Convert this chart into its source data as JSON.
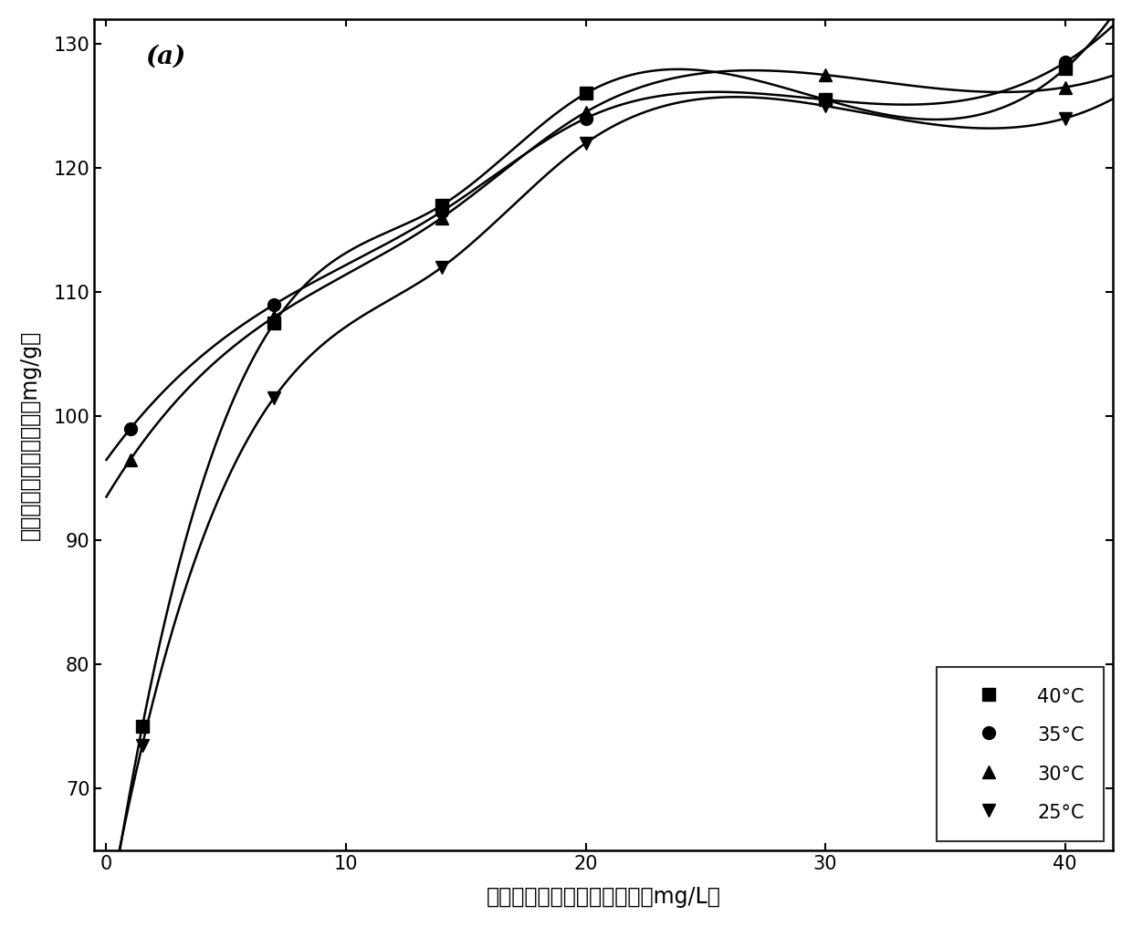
{
  "title": "(a)",
  "xlabel": "吸附饱和后剩余磷酸盐浓度（mg/L）",
  "ylabel": "吸附饱和时磷吸附容量（mg/g）",
  "xlim": [
    -0.5,
    42
  ],
  "ylim": [
    65,
    132
  ],
  "xticks": [
    0,
    10,
    20,
    30,
    40
  ],
  "yticks": [
    70,
    80,
    90,
    100,
    110,
    120,
    130
  ],
  "series": [
    {
      "label": "40°C",
      "marker": "s",
      "x": [
        1.5,
        7,
        14,
        20,
        30,
        40
      ],
      "y": [
        75.0,
        107.5,
        117.0,
        126.0,
        125.5,
        128.0
      ]
    },
    {
      "label": "35°C",
      "marker": "o",
      "x": [
        1.0,
        7,
        14,
        20,
        30,
        40
      ],
      "y": [
        99.0,
        109.0,
        116.5,
        124.0,
        125.5,
        128.5
      ]
    },
    {
      "label": "30°C",
      "marker": "^",
      "x": [
        1.0,
        7,
        14,
        20,
        30,
        40
      ],
      "y": [
        96.5,
        108.0,
        116.0,
        124.5,
        127.5,
        126.5
      ]
    },
    {
      "label": "25°C",
      "marker": "v",
      "x": [
        1.5,
        7,
        14,
        20,
        30,
        40
      ],
      "y": [
        73.5,
        101.5,
        112.0,
        122.0,
        125.0,
        124.0
      ]
    }
  ],
  "background_color": "#ffffff",
  "line_color": "#000000",
  "marker_size": 10,
  "line_width": 1.8,
  "legend_fontsize": 15,
  "axis_label_fontsize": 17,
  "tick_fontsize": 15,
  "title_fontsize": 20
}
